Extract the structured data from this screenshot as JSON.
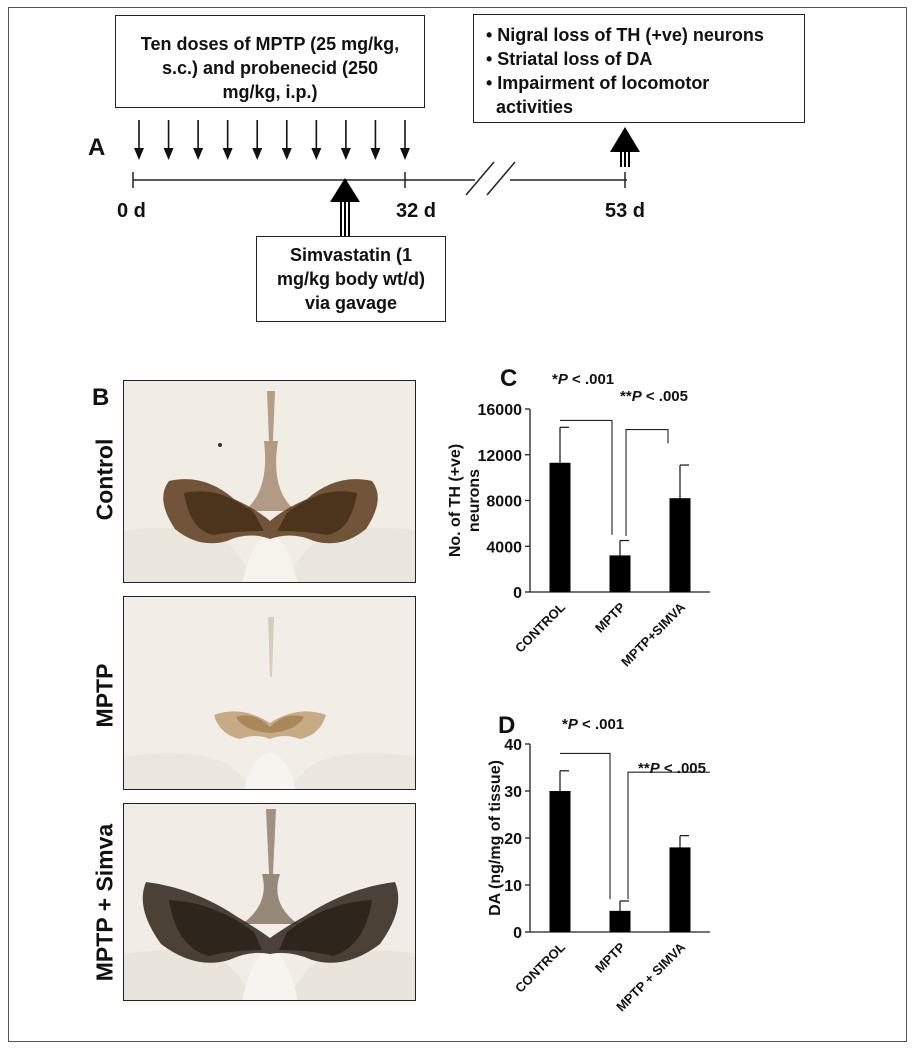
{
  "panelA": {
    "letter": "A",
    "mptp_box": [
      "Ten doses of MPTP (25 mg/kg,",
      "s.c.) and probenecid (250",
      "mg/kg, i.p.)"
    ],
    "outcomes": [
      "• Nigral loss of TH (+ve) neurons",
      "• Striatal loss of DA",
      "• Impairment of locomotor",
      "activities"
    ],
    "simva_box": [
      "Simvastatin (1",
      "mg/kg body wt/d)",
      "via gavage"
    ],
    "day_start": "0 d",
    "day_mid": "32 d",
    "day_end": "53 d",
    "dose_arrow_count": 10
  },
  "panelB": {
    "letter": "B",
    "rows": [
      {
        "label": "Control",
        "image": "brain-section-control"
      },
      {
        "label": "MPTP",
        "image": "brain-section-mptp"
      },
      {
        "label": "MPTP + Simva",
        "image": "brain-section-mptp-simva"
      }
    ]
  },
  "panelC": {
    "letter": "C",
    "sig1": "*P < .001",
    "sig2": "**P < .005"
  },
  "panelD": {
    "letter": "D",
    "sig1": "*P < .001",
    "sig2": "**P < .005"
  },
  "chart_data": [
    {
      "type": "bar",
      "panel": "C",
      "categories": [
        "CONTROL",
        "MPTP",
        "MPTP+SIMVA"
      ],
      "values": [
        11300,
        3200,
        8200
      ],
      "errors": [
        3100,
        1300,
        2900
      ],
      "ylabel": "No. of TH (+ve) neurons",
      "xlabel": "",
      "ylim": [
        0,
        16000
      ],
      "yticks": [
        0,
        4000,
        8000,
        12000,
        16000
      ],
      "bar_color": "#000000",
      "grid": false
    },
    {
      "type": "bar",
      "panel": "D",
      "categories": [
        "CONTROL",
        "MPTP",
        "MPTP + SIMVA"
      ],
      "values": [
        30,
        4.5,
        18
      ],
      "errors": [
        4.3,
        2.1,
        2.5
      ],
      "ylabel": "DA (ng/mg of tissue)",
      "xlabel": "",
      "ylim": [
        0,
        40
      ],
      "yticks": [
        0,
        10,
        20,
        30,
        40
      ],
      "bar_color": "#000000",
      "grid": false
    }
  ]
}
